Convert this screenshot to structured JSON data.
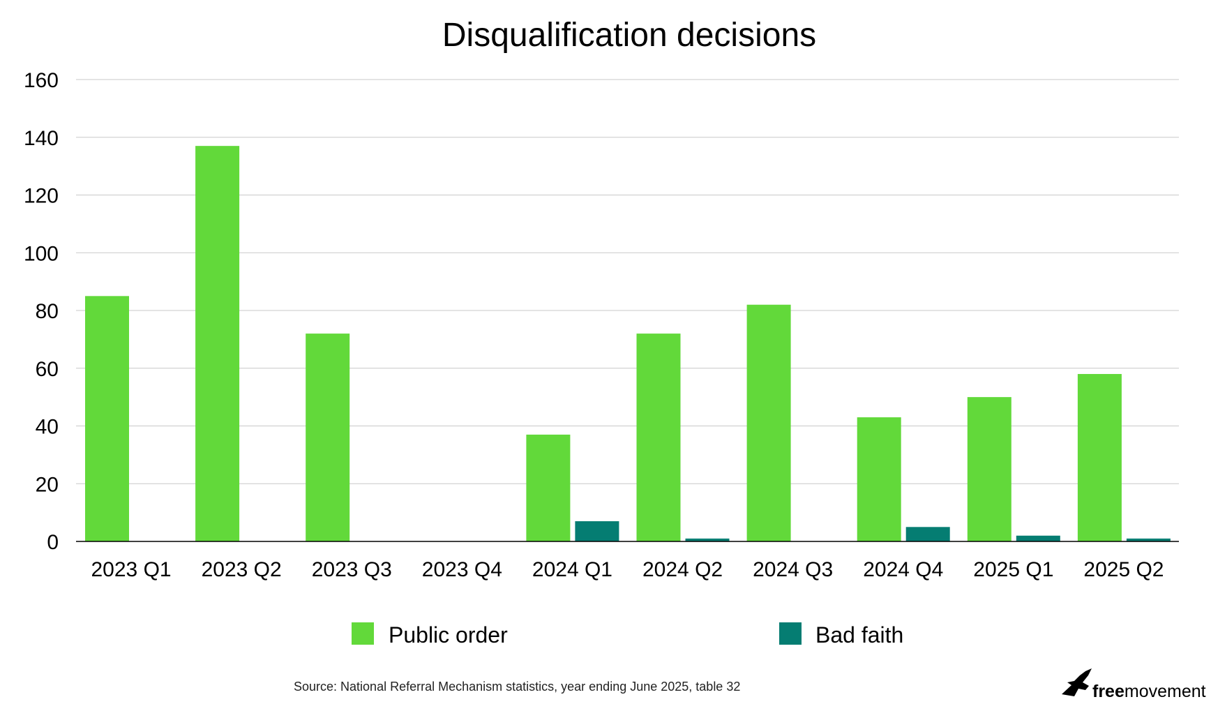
{
  "chart_data": {
    "type": "bar",
    "title": "Disqualification decisions",
    "xlabel": "",
    "ylabel": "",
    "ylim": [
      0,
      160
    ],
    "yticks": [
      0,
      20,
      40,
      60,
      80,
      100,
      120,
      140,
      160
    ],
    "grid": true,
    "legend_position": "bottom",
    "categories": [
      "2023 Q1",
      "2023 Q2",
      "2023 Q3",
      "2023 Q4",
      "2024 Q1",
      "2024 Q2",
      "2024 Q3",
      "2024 Q4",
      "2025 Q1",
      "2025 Q2"
    ],
    "series": [
      {
        "name": "Public order",
        "color": "#62d93a",
        "values": [
          85,
          137,
          72,
          0,
          37,
          72,
          82,
          43,
          50,
          58
        ]
      },
      {
        "name": "Bad faith",
        "color": "#057d72",
        "values": [
          0,
          0,
          0,
          0,
          7,
          1,
          0,
          5,
          2,
          1
        ]
      }
    ],
    "source": "Source: National Referral Mechanism statistics, year ending June 2025, table 32"
  },
  "logo": {
    "text_bold": "free",
    "text_regular": "movement",
    "icon": "bird-icon"
  }
}
